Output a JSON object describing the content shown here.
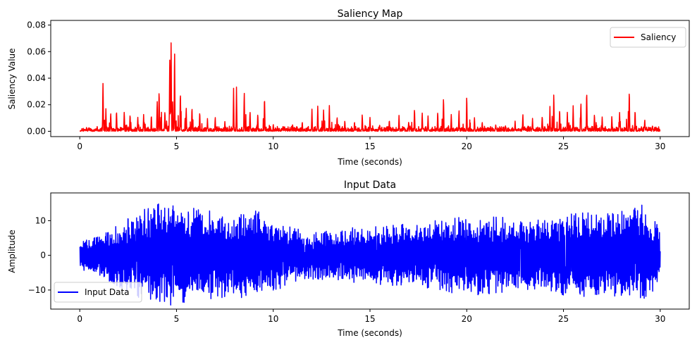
{
  "chart_data": [
    {
      "type": "line",
      "title": "Saliency Map",
      "xlabel": "Time (seconds)",
      "ylabel": "Saliency Value",
      "xlim": [
        -1.5,
        31.5
      ],
      "ylim": [
        -0.004,
        0.0835
      ],
      "xticks": [
        0,
        5,
        10,
        15,
        20,
        25,
        30
      ],
      "yticks": [
        0.0,
        0.02,
        0.04,
        0.06,
        0.08
      ],
      "ytick_decimals": 2,
      "grid": false,
      "legend": "upper right",
      "series": [
        {
          "name": "Saliency",
          "color": "#ff0000",
          "style": "spiky",
          "x_start": 0,
          "x_end": 30,
          "baseline": 0.002,
          "noise": 0.004,
          "peaks": [
            [
              0.5,
              0.003
            ],
            [
              0.9,
              0.004
            ],
            [
              1.2,
              0.042
            ],
            [
              1.35,
              0.018
            ],
            [
              1.6,
              0.016
            ],
            [
              1.9,
              0.018
            ],
            [
              2.3,
              0.017
            ],
            [
              2.6,
              0.015
            ],
            [
              3.0,
              0.012
            ],
            [
              3.3,
              0.013
            ],
            [
              3.7,
              0.014
            ],
            [
              4.0,
              0.026
            ],
            [
              4.1,
              0.037
            ],
            [
              4.4,
              0.018
            ],
            [
              4.65,
              0.062
            ],
            [
              4.72,
              0.079
            ],
            [
              4.8,
              0.025
            ],
            [
              4.9,
              0.071
            ],
            [
              5.2,
              0.035
            ],
            [
              5.5,
              0.02
            ],
            [
              5.8,
              0.021
            ],
            [
              6.2,
              0.017
            ],
            [
              6.6,
              0.01
            ],
            [
              7.0,
              0.012
            ],
            [
              7.5,
              0.008
            ],
            [
              7.95,
              0.033
            ],
            [
              8.1,
              0.036
            ],
            [
              8.5,
              0.035
            ],
            [
              8.8,
              0.018
            ],
            [
              9.2,
              0.015
            ],
            [
              9.55,
              0.03
            ],
            [
              10.0,
              0.006
            ],
            [
              10.5,
              0.004
            ],
            [
              11.0,
              0.006
            ],
            [
              11.5,
              0.008
            ],
            [
              12.0,
              0.018
            ],
            [
              12.3,
              0.021
            ],
            [
              12.6,
              0.018
            ],
            [
              12.9,
              0.022
            ],
            [
              13.3,
              0.012
            ],
            [
              13.7,
              0.01
            ],
            [
              14.2,
              0.008
            ],
            [
              14.6,
              0.015
            ],
            [
              15.0,
              0.012
            ],
            [
              15.5,
              0.006
            ],
            [
              16.0,
              0.01
            ],
            [
              16.5,
              0.013
            ],
            [
              17.0,
              0.009
            ],
            [
              17.3,
              0.02
            ],
            [
              17.7,
              0.016
            ],
            [
              18.0,
              0.012
            ],
            [
              18.5,
              0.018
            ],
            [
              18.8,
              0.031
            ],
            [
              19.2,
              0.014
            ],
            [
              19.6,
              0.018
            ],
            [
              20.0,
              0.029
            ],
            [
              20.4,
              0.012
            ],
            [
              20.8,
              0.008
            ],
            [
              21.5,
              0.006
            ],
            [
              22.0,
              0.005
            ],
            [
              22.5,
              0.008
            ],
            [
              22.9,
              0.015
            ],
            [
              23.4,
              0.01
            ],
            [
              23.9,
              0.014
            ],
            [
              24.3,
              0.019
            ],
            [
              24.5,
              0.032
            ],
            [
              24.8,
              0.02
            ],
            [
              25.2,
              0.015
            ],
            [
              25.5,
              0.021
            ],
            [
              25.9,
              0.024
            ],
            [
              26.2,
              0.036
            ],
            [
              26.6,
              0.015
            ],
            [
              27.0,
              0.012
            ],
            [
              27.5,
              0.013
            ],
            [
              27.9,
              0.015
            ],
            [
              28.4,
              0.035
            ],
            [
              28.7,
              0.018
            ],
            [
              29.2,
              0.01
            ],
            [
              29.6,
              0.005
            ]
          ]
        }
      ]
    },
    {
      "type": "line",
      "title": "Input Data",
      "xlabel": "Time (seconds)",
      "ylabel": "Amplitude",
      "xlim": [
        -1.5,
        31.5
      ],
      "ylim": [
        -15.5,
        18.0
      ],
      "xticks": [
        0,
        5,
        10,
        15,
        20,
        25,
        30
      ],
      "yticks": [
        -10,
        0,
        10
      ],
      "ytick_decimals": 0,
      "grid": false,
      "legend": "lower left",
      "series": [
        {
          "name": "Input Data",
          "color": "#0000ff",
          "style": "oscillating",
          "x_start": 0,
          "x_end": 30,
          "envelope": [
            [
              0,
              4
            ],
            [
              1,
              6
            ],
            [
              2,
              9
            ],
            [
              3,
              13
            ],
            [
              4,
              15
            ],
            [
              5,
              15
            ],
            [
              6,
              14
            ],
            [
              7,
              13
            ],
            [
              8,
              12
            ],
            [
              9,
              13
            ],
            [
              10,
              11
            ],
            [
              11,
              8
            ],
            [
              12,
              7
            ],
            [
              13,
              7
            ],
            [
              14,
              8
            ],
            [
              15,
              8
            ],
            [
              16,
              9
            ],
            [
              17,
              9
            ],
            [
              18,
              10
            ],
            [
              19,
              11
            ],
            [
              20,
              11
            ],
            [
              21,
              12
            ],
            [
              22,
              11
            ],
            [
              23,
              10
            ],
            [
              24,
              11
            ],
            [
              25,
              12
            ],
            [
              26,
              13
            ],
            [
              27,
              12
            ],
            [
              28,
              14
            ],
            [
              29,
              15
            ],
            [
              30,
              8
            ]
          ]
        }
      ]
    }
  ]
}
